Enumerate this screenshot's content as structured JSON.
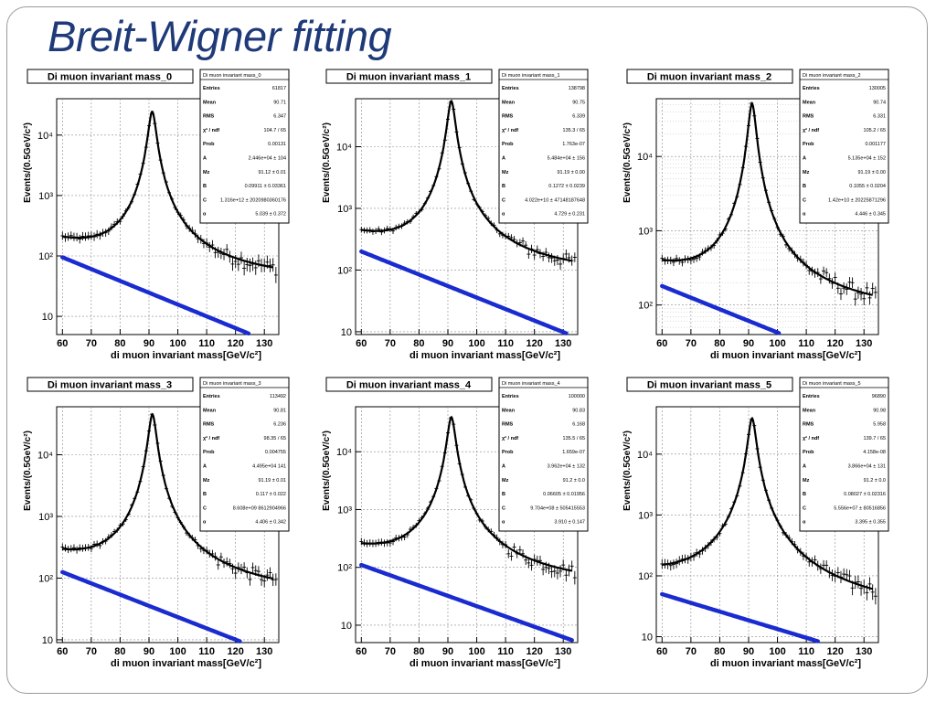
{
  "slide": {
    "title": "Breit-Wigner fitting"
  },
  "colors": {
    "title": "#1f3a78",
    "data": "#000000",
    "background_fit": "#1a2bd0",
    "grid": "#8a8a8a"
  },
  "chart_data": [
    {
      "type": "line",
      "title": "Di muon invariant mass_0",
      "xlabel": "di muon invariant mass[GeV/c²]",
      "ylabel": "Events/(0.5GeV/c²)",
      "xlim": [
        58,
        135
      ],
      "ylim": [
        5,
        40000
      ],
      "yscale": "log",
      "grid": true,
      "x_ticks": [
        60,
        70,
        80,
        90,
        100,
        110,
        120,
        130
      ],
      "y_ticks": [
        {
          "value": 10,
          "label": "10"
        },
        {
          "value": 100,
          "label": "10²"
        },
        {
          "value": 1000,
          "label": "10³"
        },
        {
          "value": 10000,
          "label": "10⁴"
        }
      ],
      "bw": {
        "A": 24400,
        "Mz": 91.12,
        "G": 2.5
      },
      "background_fit": {
        "at60": 95,
        "slope": 0.045
      },
      "stats": {
        "title": "Di muon invariant mass_0",
        "rows": [
          [
            "Entries",
            "61817"
          ],
          [
            "Mean",
            "90.71"
          ],
          [
            "RMS",
            "6.347"
          ],
          [
            "χ² / ndf",
            "104.7 / 65"
          ],
          [
            "Prob",
            "0.00131"
          ],
          [
            "A",
            "2.446e+04 ± 104"
          ],
          [
            "Mz",
            "91.12 ± 0.01"
          ],
          [
            "B",
            "0.09911 ± 0.03361"
          ],
          [
            "C",
            "1.316e+12 ± 2020980360176"
          ],
          [
            "α",
            "5.039 ± 0.372"
          ]
        ]
      }
    },
    {
      "type": "line",
      "title": "Di muon invariant mass_1",
      "xlabel": "di muon invariant mass[GeV/c²]",
      "ylabel": "Events/(0.5GeV/c²)",
      "xlim": [
        58,
        135
      ],
      "ylim": [
        9,
        60000
      ],
      "yscale": "log",
      "grid": true,
      "x_ticks": [
        60,
        70,
        80,
        90,
        100,
        110,
        120,
        130
      ],
      "y_ticks": [
        {
          "value": 10,
          "label": "10"
        },
        {
          "value": 100,
          "label": "10²"
        },
        {
          "value": 1000,
          "label": "10³"
        },
        {
          "value": 10000,
          "label": "10⁴"
        }
      ],
      "bw": {
        "A": 54840,
        "Mz": 91.19,
        "G": 2.5
      },
      "background_fit": {
        "at60": 200,
        "slope": 0.043
      },
      "stats": {
        "title": "Di muon invariant mass_1",
        "rows": [
          [
            "Entries",
            "138798"
          ],
          [
            "Mean",
            "90.75"
          ],
          [
            "RMS",
            "6.339"
          ],
          [
            "χ² / ndf",
            "135.3 / 65"
          ],
          [
            "Prob",
            "1.763e-07"
          ],
          [
            "A",
            "5.484e+04 ± 156"
          ],
          [
            "Mz",
            "91.19 ± 0.00"
          ],
          [
            "B",
            "0.1272 ± 0.0239"
          ],
          [
            "C",
            "4.022e+10 ± 47148187648"
          ],
          [
            "α",
            "4.729 ± 0.231"
          ]
        ]
      }
    },
    {
      "type": "line",
      "title": "Di muon invariant mass_2",
      "xlabel": "di muon invariant mass[GeV/c²]",
      "ylabel": "Events/(0.5GeV/c²)",
      "xlim": [
        58,
        135
      ],
      "ylim": [
        40,
        60000
      ],
      "yscale": "log",
      "grid": true,
      "minor_grid": true,
      "x_ticks": [
        60,
        70,
        80,
        90,
        100,
        110,
        120,
        130
      ],
      "y_ticks": [
        {
          "value": 100,
          "label": "10²"
        },
        {
          "value": 1000,
          "label": "10³"
        },
        {
          "value": 10000,
          "label": "10⁴"
        }
      ],
      "bw": {
        "A": 51350,
        "Mz": 91.19,
        "G": 2.5
      },
      "background_fit": {
        "at60": 180,
        "slope": 0.036
      },
      "stats": {
        "title": "Di muon invariant mass_2",
        "rows": [
          [
            "Entries",
            "130005"
          ],
          [
            "Mean",
            "90.74"
          ],
          [
            "RMS",
            "6.331"
          ],
          [
            "χ² / ndf",
            "105.2 / 65"
          ],
          [
            "Prob",
            "0.001177"
          ],
          [
            "A",
            "5.135e+04 ± 152"
          ],
          [
            "Mz",
            "91.19 ± 0.00"
          ],
          [
            "B",
            "0.1055 ± 0.0204"
          ],
          [
            "C",
            "1.42e+10 ± 20225871296"
          ],
          [
            "α",
            "4.446 ± 0.345"
          ]
        ]
      }
    },
    {
      "type": "line",
      "title": "Di muon invariant mass_3",
      "xlabel": "di muon invariant mass[GeV/c²]",
      "ylabel": "Events/(0.5GeV/c²)",
      "xlim": [
        58,
        135
      ],
      "ylim": [
        9,
        60000
      ],
      "yscale": "log",
      "grid": true,
      "x_ticks": [
        60,
        70,
        80,
        90,
        100,
        110,
        120,
        130
      ],
      "y_ticks": [
        {
          "value": 10,
          "label": "10"
        },
        {
          "value": 100,
          "label": "10²"
        },
        {
          "value": 1000,
          "label": "10³"
        },
        {
          "value": 10000,
          "label": "10⁴"
        }
      ],
      "bw": {
        "A": 44950,
        "Mz": 91.19,
        "G": 2.5
      },
      "background_fit": {
        "at60": 125,
        "slope": 0.042
      },
      "stats": {
        "title": "Di muon invariant mass_3",
        "rows": [
          [
            "Entries",
            "113492"
          ],
          [
            "Mean",
            "90.81"
          ],
          [
            "RMS",
            "6.236"
          ],
          [
            "χ² / ndf",
            "98.35 / 65"
          ],
          [
            "Prob",
            "0.004755"
          ],
          [
            "A",
            "4.495e+04 141"
          ],
          [
            "Mz",
            "91.19 ± 0.01"
          ],
          [
            "B",
            "0.117 ± 0.022"
          ],
          [
            "C",
            "8.608e+09 8612904966"
          ],
          [
            "α",
            "4.406 ± 0.342"
          ]
        ]
      }
    },
    {
      "type": "line",
      "title": "Di muon invariant mass_4",
      "xlabel": "di muon invariant mass[GeV/c²]",
      "ylabel": "Events/(0.5GeV/c²)",
      "xlim": [
        58,
        135
      ],
      "ylim": [
        5,
        60000
      ],
      "yscale": "log",
      "grid": true,
      "x_ticks": [
        60,
        70,
        80,
        90,
        100,
        110,
        120,
        130
      ],
      "y_ticks": [
        {
          "value": 10,
          "label": "10"
        },
        {
          "value": 100,
          "label": "10²"
        },
        {
          "value": 1000,
          "label": "10³"
        },
        {
          "value": 10000,
          "label": "10⁴"
        }
      ],
      "bw": {
        "A": 39620,
        "Mz": 91.2,
        "G": 2.5
      },
      "background_fit": {
        "at60": 110,
        "slope": 0.041
      },
      "stats": {
        "title": "Di muon invariant mass_4",
        "rows": [
          [
            "Entries",
            "100000"
          ],
          [
            "Mean",
            "90.83"
          ],
          [
            "RMS",
            "6.168"
          ],
          [
            "χ² / ndf",
            "135.5 / 65"
          ],
          [
            "Prob",
            "1.659e-07"
          ],
          [
            "A",
            "3.962e+04 ± 132"
          ],
          [
            "Mz",
            "91.2 ± 0.0"
          ],
          [
            "B",
            "0.06605 ± 0.01956"
          ],
          [
            "C",
            "9.704e+08 ± 505415553"
          ],
          [
            "α",
            "3.910 ± 0.147"
          ]
        ]
      }
    },
    {
      "type": "line",
      "title": "Di muon invariant mass_5",
      "xlabel": "di muon invariant mass[GeV/c²]",
      "ylabel": "Events/(0.5GeV/c²)",
      "xlim": [
        58,
        135
      ],
      "ylim": [
        8,
        60000
      ],
      "yscale": "log",
      "grid": true,
      "x_ticks": [
        60,
        70,
        80,
        90,
        100,
        110,
        120,
        130
      ],
      "y_ticks": [
        {
          "value": 10,
          "label": "10"
        },
        {
          "value": 100,
          "label": "10²"
        },
        {
          "value": 1000,
          "label": "10³"
        },
        {
          "value": 10000,
          "label": "10⁴"
        }
      ],
      "bw": {
        "A": 38660,
        "Mz": 91.2,
        "G": 2.5
      },
      "background_fit": {
        "at60": 50,
        "slope": 0.033
      },
      "stats": {
        "title": "Di muon invariant mass_5",
        "rows": [
          [
            "Entries",
            "96890"
          ],
          [
            "Mean",
            "90.98"
          ],
          [
            "RMS",
            "5.958"
          ],
          [
            "χ² / ndf",
            "139.7 / 65"
          ],
          [
            "Prob",
            "4.158e-08"
          ],
          [
            "A",
            "3.866e+04 ± 131"
          ],
          [
            "Mz",
            "91.2 ± 0.0"
          ],
          [
            "B",
            "0.08027 ± 0.02316"
          ],
          [
            "C",
            "5.556e+07 ± 80516856"
          ],
          [
            "α",
            "3.395 ± 0.355"
          ]
        ]
      }
    }
  ]
}
